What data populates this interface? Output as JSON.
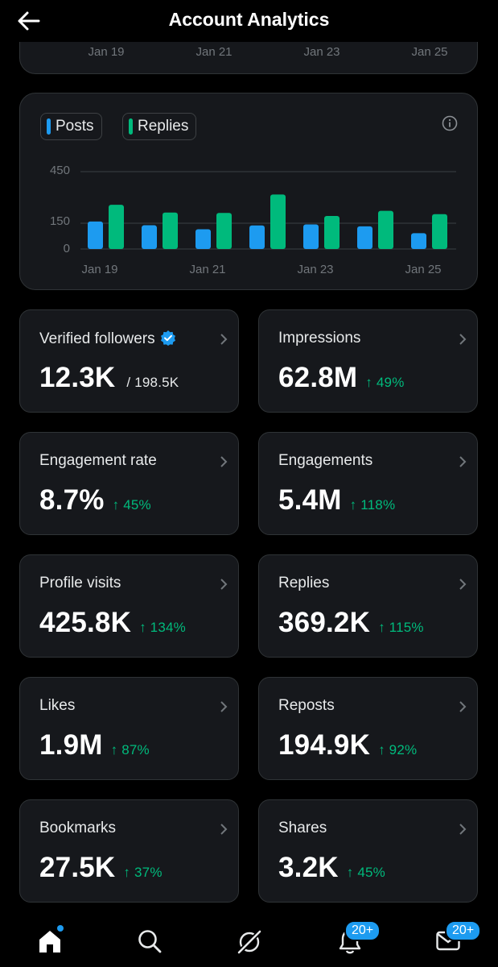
{
  "header": {
    "title": "Account Analytics",
    "back_icon": "arrow-left-icon"
  },
  "top_card": {
    "x_labels": [
      "Jan 19",
      "Jan 21",
      "Jan 23",
      "Jan 25"
    ]
  },
  "chart_card": {
    "legend": [
      {
        "label": "Posts",
        "color": "#1d9bf0"
      },
      {
        "label": "Replies",
        "color": "#00ba7c"
      }
    ],
    "info_icon": "info-icon"
  },
  "chart_data": {
    "type": "bar",
    "y_ticks": [
      "450",
      "150",
      "0"
    ],
    "x_tick_labels": [
      "Jan 19",
      "Jan 21",
      "Jan 23",
      "Jan 25"
    ],
    "ylim": [
      0,
      450
    ],
    "series": [
      {
        "name": "Posts",
        "color": "#1d9bf0",
        "values": [
          160,
          138,
          115,
          137,
          143,
          132,
          92
        ]
      },
      {
        "name": "Replies",
        "color": "#00ba7c",
        "values": [
          257,
          212,
          210,
          317,
          192,
          222,
          203
        ]
      }
    ],
    "grid": true
  },
  "stats": [
    {
      "label": "Verified followers",
      "value": "12.3K",
      "sub": "/ 198.5K",
      "change": "",
      "verified": true
    },
    {
      "label": "Impressions",
      "value": "62.8M",
      "sub": "",
      "change": "↑ 49%"
    },
    {
      "label": "Engagement rate",
      "value": "8.7%",
      "sub": "",
      "change": "↑ 45%"
    },
    {
      "label": "Engagements",
      "value": "5.4M",
      "sub": "",
      "change": "↑ 118%"
    },
    {
      "label": "Profile visits",
      "value": "425.8K",
      "sub": "",
      "change": "↑ 134%"
    },
    {
      "label": "Replies",
      "value": "369.2K",
      "sub": "",
      "change": "↑ 115%"
    },
    {
      "label": "Likes",
      "value": "1.9M",
      "sub": "",
      "change": "↑ 87%"
    },
    {
      "label": "Reposts",
      "value": "194.9K",
      "sub": "",
      "change": "↑ 92%"
    },
    {
      "label": "Bookmarks",
      "value": "27.5K",
      "sub": "",
      "change": "↑ 37%"
    },
    {
      "label": "Shares",
      "value": "3.2K",
      "sub": "",
      "change": "↑ 45%"
    }
  ],
  "nav": {
    "items": [
      "home-icon",
      "search-icon",
      "grok-icon",
      "bell-icon",
      "mail-icon"
    ],
    "notifications_badge": "20+",
    "messages_badge": "20+"
  },
  "colors": {
    "accent": "#1d9bf0",
    "positive": "#00ba7c",
    "card": "#16181c",
    "border": "#2f3336"
  }
}
